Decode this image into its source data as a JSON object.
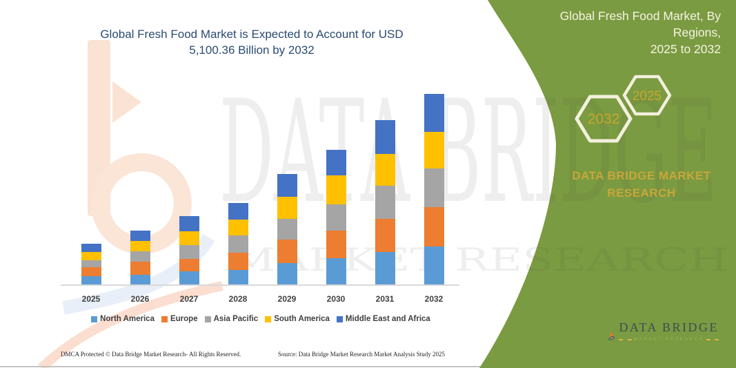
{
  "title": {
    "line1": "Global Fresh Food Market is Expected to Account for USD",
    "line2": "5,100.36 Billion by 2032"
  },
  "footer": {
    "left": "DMCA Protected © Data Bridge Market Research-  All Rights Reserved.",
    "right": "Source: Data Bridge Market Research  Market Analysis Study 2025"
  },
  "watermark": {
    "row1": "DATA BRIDGE",
    "row2": "MARKET RESEARCH"
  },
  "side_panel": {
    "heading": {
      "line1": "Global Fresh Food Market, By Regions,",
      "line2": "2025 to 2032"
    },
    "hexagon_back_label": "2032",
    "hexagon_front_label": "2025",
    "brand": {
      "line1": "DATA BRIDGE MARKET",
      "line2": "RESEARCH"
    },
    "logo": {
      "title": "DATA BRIDGE",
      "subtitle": "MARKET RESEARCH"
    },
    "colors": {
      "panel_green": "#7A9B41",
      "gold_text": "#C9A63A",
      "hexagon_stroke": "#F3F0DD",
      "heading_text": "#F6F3E3"
    }
  },
  "chart_data": {
    "type": "bar",
    "stacked": true,
    "title": "Global Fresh Food Market is Expected to Account for USD 5,100.36 Billion by 2032",
    "value_unit": "USD Billion",
    "xlabel": "",
    "ylabel": "",
    "gridlines": false,
    "legend_position": "bottom",
    "value_axis_max": 5100.36,
    "categories": [
      "2025",
      "2026",
      "2027",
      "2028",
      "2029",
      "2030",
      "2031",
      "2032"
    ],
    "series": [
      {
        "name": "North America",
        "color": "#5B9BD5",
        "values": [
          228,
          250,
          351,
          383,
          568,
          703,
          869,
          1021
        ]
      },
      {
        "name": "Europe",
        "color": "#ED7D31",
        "values": [
          235,
          355,
          339,
          462,
          634,
          740,
          882,
          1048
        ]
      },
      {
        "name": "Asia Pacific",
        "color": "#A5A5A5",
        "values": [
          185,
          277,
          370,
          462,
          555,
          708,
          893,
          1030
        ]
      },
      {
        "name": "South America",
        "color": "#FFC000",
        "values": [
          216,
          275,
          370,
          431,
          586,
          771,
          851,
          986
        ]
      },
      {
        "name": "Middle East and Africa",
        "color": "#4472C4",
        "values": [
          235,
          283,
          401,
          444,
          605,
          690,
          906,
          1015.36
        ]
      }
    ],
    "totals_estimated": [
      1099,
      1440,
      1831,
      2182,
      2948,
      3612,
      4401,
      5100.36
    ]
  }
}
